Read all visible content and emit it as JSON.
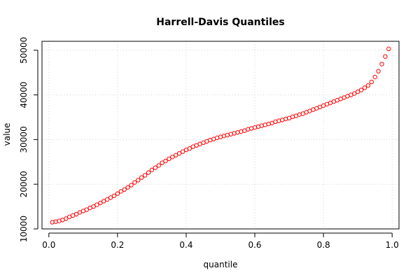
{
  "chart_data": {
    "type": "scatter",
    "title": "Harrell-Davis Quantiles",
    "xlabel": "quantile",
    "ylabel": "value",
    "xlim": [
      0.0,
      1.0
    ],
    "ylim": [
      10000,
      52000
    ],
    "xticks": [
      0.0,
      0.2,
      0.4,
      0.6,
      0.8,
      1.0
    ],
    "xtick_labels": [
      "0.0",
      "0.2",
      "0.4",
      "0.6",
      "0.8",
      "1.0"
    ],
    "yticks": [
      10000,
      20000,
      30000,
      40000,
      50000
    ],
    "ytick_labels": [
      "10000",
      "20000",
      "30000",
      "40000",
      "50000"
    ],
    "grid": true,
    "marker": "open-circle",
    "point_color": "#ff0000",
    "points": [
      [
        0.01,
        11500
      ],
      [
        0.02,
        11600
      ],
      [
        0.03,
        11800
      ],
      [
        0.04,
        12000
      ],
      [
        0.05,
        12300
      ],
      [
        0.06,
        12700
      ],
      [
        0.07,
        13000
      ],
      [
        0.08,
        13300
      ],
      [
        0.09,
        13700
      ],
      [
        0.1,
        14000
      ],
      [
        0.11,
        14300
      ],
      [
        0.12,
        14700
      ],
      [
        0.13,
        15000
      ],
      [
        0.14,
        15400
      ],
      [
        0.15,
        15800
      ],
      [
        0.16,
        16200
      ],
      [
        0.17,
        16600
      ],
      [
        0.18,
        17000
      ],
      [
        0.19,
        17400
      ],
      [
        0.2,
        17900
      ],
      [
        0.21,
        18400
      ],
      [
        0.22,
        18800
      ],
      [
        0.23,
        19300
      ],
      [
        0.24,
        19800
      ],
      [
        0.25,
        20400
      ],
      [
        0.26,
        20900
      ],
      [
        0.27,
        21500
      ],
      [
        0.28,
        22000
      ],
      [
        0.29,
        22600
      ],
      [
        0.3,
        23200
      ],
      [
        0.31,
        23700
      ],
      [
        0.32,
        24200
      ],
      [
        0.33,
        24800
      ],
      [
        0.34,
        25200
      ],
      [
        0.35,
        25700
      ],
      [
        0.36,
        26100
      ],
      [
        0.37,
        26500
      ],
      [
        0.38,
        26900
      ],
      [
        0.39,
        27300
      ],
      [
        0.4,
        27700
      ],
      [
        0.41,
        28000
      ],
      [
        0.42,
        28400
      ],
      [
        0.43,
        28700
      ],
      [
        0.44,
        29000
      ],
      [
        0.45,
        29300
      ],
      [
        0.46,
        29600
      ],
      [
        0.47,
        29900
      ],
      [
        0.48,
        30100
      ],
      [
        0.49,
        30400
      ],
      [
        0.5,
        30600
      ],
      [
        0.51,
        30800
      ],
      [
        0.52,
        31000
      ],
      [
        0.53,
        31200
      ],
      [
        0.54,
        31400
      ],
      [
        0.55,
        31600
      ],
      [
        0.56,
        31800
      ],
      [
        0.57,
        32000
      ],
      [
        0.58,
        32300
      ],
      [
        0.59,
        32500
      ],
      [
        0.6,
        32700
      ],
      [
        0.61,
        32900
      ],
      [
        0.62,
        33100
      ],
      [
        0.63,
        33300
      ],
      [
        0.64,
        33500
      ],
      [
        0.65,
        33700
      ],
      [
        0.66,
        34000
      ],
      [
        0.67,
        34200
      ],
      [
        0.68,
        34400
      ],
      [
        0.69,
        34600
      ],
      [
        0.7,
        34800
      ],
      [
        0.71,
        35100
      ],
      [
        0.72,
        35300
      ],
      [
        0.73,
        35600
      ],
      [
        0.74,
        35800
      ],
      [
        0.75,
        36100
      ],
      [
        0.76,
        36400
      ],
      [
        0.77,
        36700
      ],
      [
        0.78,
        37000
      ],
      [
        0.79,
        37300
      ],
      [
        0.8,
        37600
      ],
      [
        0.81,
        37900
      ],
      [
        0.82,
        38200
      ],
      [
        0.83,
        38500
      ],
      [
        0.84,
        38800
      ],
      [
        0.85,
        39100
      ],
      [
        0.86,
        39400
      ],
      [
        0.87,
        39700
      ],
      [
        0.88,
        40000
      ],
      [
        0.89,
        40300
      ],
      [
        0.9,
        40700
      ],
      [
        0.91,
        41100
      ],
      [
        0.92,
        41600
      ],
      [
        0.93,
        42100
      ],
      [
        0.94,
        42900
      ],
      [
        0.95,
        44000
      ],
      [
        0.96,
        45300
      ],
      [
        0.97,
        46900
      ],
      [
        0.98,
        48600
      ],
      [
        0.99,
        50300
      ]
    ]
  }
}
